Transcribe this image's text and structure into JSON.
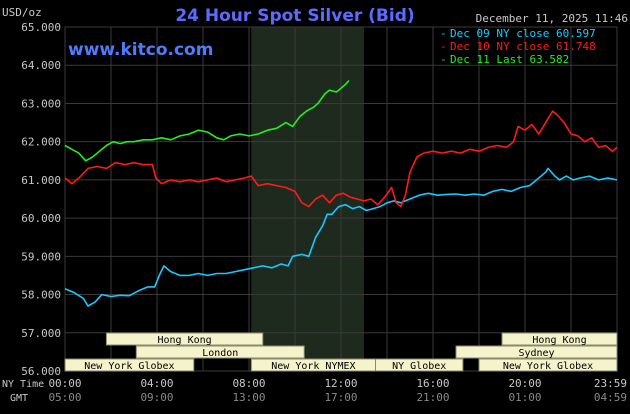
{
  "title": "24 Hour Spot Silver (Bid)",
  "unit_label": "USD/oz",
  "timestamp": "December 11, 2025 11:46",
  "watermark": "www.kitco.com",
  "colors": {
    "background": "#000000",
    "grid": "#3a3a3a",
    "highlight": "#1f2a1f",
    "title": "#5b6bff",
    "watermark": "#4f7cff",
    "axis_text": "#c8c8c8",
    "session_box_fill": "#f4f3cc",
    "session_box_text": "#000000"
  },
  "chart_data": {
    "type": "line",
    "ylabel": "USD/oz",
    "ylim": [
      56.0,
      65.0
    ],
    "xlim": [
      0,
      24
    ],
    "y_ticks": [
      "56.000",
      "57.000",
      "58.000",
      "59.000",
      "60.000",
      "61.000",
      "62.000",
      "63.000",
      "64.000",
      "65.000"
    ],
    "x_ticks": [
      {
        "ny": "00:00",
        "gmt": "05:00"
      },
      {
        "ny": "04:00",
        "gmt": "09:00"
      },
      {
        "ny": "08:00",
        "gmt": "13:00"
      },
      {
        "ny": "12:00",
        "gmt": "17:00"
      },
      {
        "ny": "16:00",
        "gmt": "21:00"
      },
      {
        "ny": "20:00",
        "gmt": "01:00"
      },
      {
        "ny": "23:59",
        "gmt": "04:59"
      }
    ],
    "x_row_labels": {
      "ny": "NY Time",
      "gmt": "GMT"
    },
    "highlight_range": [
      8.1,
      13.0
    ],
    "grid": true,
    "legend_position": "top-right",
    "series": [
      {
        "name": "Dec 09 NY close 60.597",
        "color": "#19c8ff",
        "points": [
          [
            0,
            58.15
          ],
          [
            0.4,
            58.05
          ],
          [
            0.8,
            57.9
          ],
          [
            1.0,
            57.7
          ],
          [
            1.3,
            57.8
          ],
          [
            1.6,
            58.0
          ],
          [
            2.0,
            57.95
          ],
          [
            2.4,
            57.98
          ],
          [
            2.8,
            57.97
          ],
          [
            3.2,
            58.1
          ],
          [
            3.6,
            58.2
          ],
          [
            3.9,
            58.2
          ],
          [
            4.1,
            58.5
          ],
          [
            4.3,
            58.75
          ],
          [
            4.6,
            58.6
          ],
          [
            5.0,
            58.5
          ],
          [
            5.4,
            58.5
          ],
          [
            5.8,
            58.55
          ],
          [
            6.2,
            58.5
          ],
          [
            6.6,
            58.55
          ],
          [
            7.0,
            58.55
          ],
          [
            7.4,
            58.6
          ],
          [
            7.8,
            58.65
          ],
          [
            8.2,
            58.7
          ],
          [
            8.6,
            58.75
          ],
          [
            9.0,
            58.7
          ],
          [
            9.4,
            58.8
          ],
          [
            9.7,
            58.75
          ],
          [
            9.9,
            59.0
          ],
          [
            10.3,
            59.05
          ],
          [
            10.6,
            59.0
          ],
          [
            10.9,
            59.5
          ],
          [
            11.2,
            59.8
          ],
          [
            11.4,
            60.1
          ],
          [
            11.6,
            60.1
          ],
          [
            11.9,
            60.3
          ],
          [
            12.2,
            60.35
          ],
          [
            12.5,
            60.25
          ],
          [
            12.8,
            60.3
          ],
          [
            13.1,
            60.2
          ],
          [
            13.4,
            60.25
          ],
          [
            13.7,
            60.3
          ],
          [
            14.0,
            60.4
          ],
          [
            14.3,
            60.45
          ],
          [
            14.6,
            60.4
          ],
          [
            15.0,
            60.5
          ],
          [
            15.4,
            60.6
          ],
          [
            15.8,
            60.65
          ],
          [
            16.2,
            60.6
          ],
          [
            16.6,
            60.62
          ],
          [
            17.0,
            60.63
          ],
          [
            17.4,
            60.6
          ],
          [
            17.8,
            60.63
          ],
          [
            18.2,
            60.6
          ],
          [
            18.6,
            60.7
          ],
          [
            19.0,
            60.75
          ],
          [
            19.4,
            60.7
          ],
          [
            19.8,
            60.8
          ],
          [
            20.2,
            60.85
          ],
          [
            20.6,
            61.05
          ],
          [
            20.9,
            61.2
          ],
          [
            21.0,
            61.3
          ],
          [
            21.3,
            61.1
          ],
          [
            21.5,
            61.0
          ],
          [
            21.8,
            61.1
          ],
          [
            22.1,
            61.0
          ],
          [
            22.4,
            61.05
          ],
          [
            22.8,
            61.1
          ],
          [
            23.2,
            61.0
          ],
          [
            23.6,
            61.05
          ],
          [
            24.0,
            61.0
          ]
        ]
      },
      {
        "name": "Dec 10 NY close 61.748",
        "color": "#ff1a1a",
        "points": [
          [
            0,
            61.05
          ],
          [
            0.3,
            60.9
          ],
          [
            0.6,
            61.05
          ],
          [
            1.0,
            61.3
          ],
          [
            1.4,
            61.35
          ],
          [
            1.8,
            61.3
          ],
          [
            2.2,
            61.45
          ],
          [
            2.6,
            61.4
          ],
          [
            3.0,
            61.45
          ],
          [
            3.4,
            61.4
          ],
          [
            3.8,
            61.4
          ],
          [
            3.95,
            61.05
          ],
          [
            4.2,
            60.9
          ],
          [
            4.6,
            61.0
          ],
          [
            5.0,
            60.95
          ],
          [
            5.4,
            61.0
          ],
          [
            5.8,
            60.95
          ],
          [
            6.2,
            61.0
          ],
          [
            6.6,
            61.05
          ],
          [
            7.0,
            60.95
          ],
          [
            7.4,
            61.0
          ],
          [
            7.8,
            61.05
          ],
          [
            8.1,
            61.1
          ],
          [
            8.4,
            60.85
          ],
          [
            8.8,
            60.9
          ],
          [
            9.2,
            60.85
          ],
          [
            9.6,
            60.8
          ],
          [
            10.0,
            60.7
          ],
          [
            10.3,
            60.4
          ],
          [
            10.6,
            60.3
          ],
          [
            10.9,
            60.5
          ],
          [
            11.2,
            60.6
          ],
          [
            11.5,
            60.4
          ],
          [
            11.8,
            60.6
          ],
          [
            12.1,
            60.65
          ],
          [
            12.4,
            60.55
          ],
          [
            12.7,
            60.5
          ],
          [
            13.0,
            60.45
          ],
          [
            13.3,
            60.5
          ],
          [
            13.6,
            60.35
          ],
          [
            13.9,
            60.55
          ],
          [
            14.2,
            60.8
          ],
          [
            14.4,
            60.4
          ],
          [
            14.6,
            60.3
          ],
          [
            14.8,
            60.6
          ],
          [
            15.0,
            61.2
          ],
          [
            15.3,
            61.6
          ],
          [
            15.6,
            61.7
          ],
          [
            16.0,
            61.75
          ],
          [
            16.4,
            61.7
          ],
          [
            16.8,
            61.75
          ],
          [
            17.2,
            61.7
          ],
          [
            17.6,
            61.8
          ],
          [
            18.0,
            61.75
          ],
          [
            18.4,
            61.85
          ],
          [
            18.8,
            61.9
          ],
          [
            19.2,
            61.85
          ],
          [
            19.5,
            62.0
          ],
          [
            19.7,
            62.4
          ],
          [
            20.0,
            62.3
          ],
          [
            20.3,
            62.45
          ],
          [
            20.6,
            62.2
          ],
          [
            20.9,
            62.5
          ],
          [
            21.2,
            62.8
          ],
          [
            21.4,
            62.7
          ],
          [
            21.7,
            62.5
          ],
          [
            22.0,
            62.2
          ],
          [
            22.3,
            62.15
          ],
          [
            22.6,
            62.0
          ],
          [
            22.9,
            62.1
          ],
          [
            23.2,
            61.85
          ],
          [
            23.5,
            61.9
          ],
          [
            23.8,
            61.75
          ],
          [
            24.0,
            61.85
          ]
        ]
      },
      {
        "name": "Dec 11 Last 63.582",
        "color": "#22ee22",
        "points": [
          [
            0,
            61.9
          ],
          [
            0.3,
            61.8
          ],
          [
            0.6,
            61.7
          ],
          [
            0.9,
            61.5
          ],
          [
            1.2,
            61.6
          ],
          [
            1.5,
            61.75
          ],
          [
            1.8,
            61.9
          ],
          [
            2.1,
            62.0
          ],
          [
            2.4,
            61.95
          ],
          [
            2.7,
            62.0
          ],
          [
            3.0,
            62.0
          ],
          [
            3.4,
            62.05
          ],
          [
            3.8,
            62.05
          ],
          [
            4.2,
            62.1
          ],
          [
            4.6,
            62.05
          ],
          [
            5.0,
            62.15
          ],
          [
            5.4,
            62.2
          ],
          [
            5.8,
            62.3
          ],
          [
            6.2,
            62.25
          ],
          [
            6.6,
            62.1
          ],
          [
            6.9,
            62.05
          ],
          [
            7.2,
            62.15
          ],
          [
            7.6,
            62.2
          ],
          [
            8.0,
            62.15
          ],
          [
            8.4,
            62.2
          ],
          [
            8.8,
            62.3
          ],
          [
            9.2,
            62.35
          ],
          [
            9.6,
            62.5
          ],
          [
            9.9,
            62.4
          ],
          [
            10.2,
            62.65
          ],
          [
            10.5,
            62.8
          ],
          [
            10.8,
            62.9
          ],
          [
            11.0,
            63.0
          ],
          [
            11.3,
            63.25
          ],
          [
            11.5,
            63.35
          ],
          [
            11.8,
            63.3
          ],
          [
            12.0,
            63.4
          ],
          [
            12.2,
            63.5
          ],
          [
            12.35,
            63.6
          ]
        ]
      }
    ]
  },
  "sessions": {
    "top_row": [
      {
        "label": "Hong Kong",
        "start": 1.8,
        "end": 8.6
      },
      {
        "label": "Hong Kong",
        "start": 19.0,
        "end": 24.0
      }
    ],
    "middle_row": [
      {
        "label": "London",
        "start": 3.1,
        "end": 10.4
      },
      {
        "label": "Sydney",
        "start": 17.0,
        "end": 24.0
      }
    ],
    "bottom_row": [
      {
        "label": "New York Globex",
        "start": 0.0,
        "end": 5.6
      },
      {
        "label": "New York NYMEX",
        "start": 8.1,
        "end": 13.5
      },
      {
        "label": "NY Globex",
        "start": 13.5,
        "end": 17.3
      },
      {
        "label": "New York Globex",
        "start": 18.0,
        "end": 24.0
      }
    ]
  }
}
